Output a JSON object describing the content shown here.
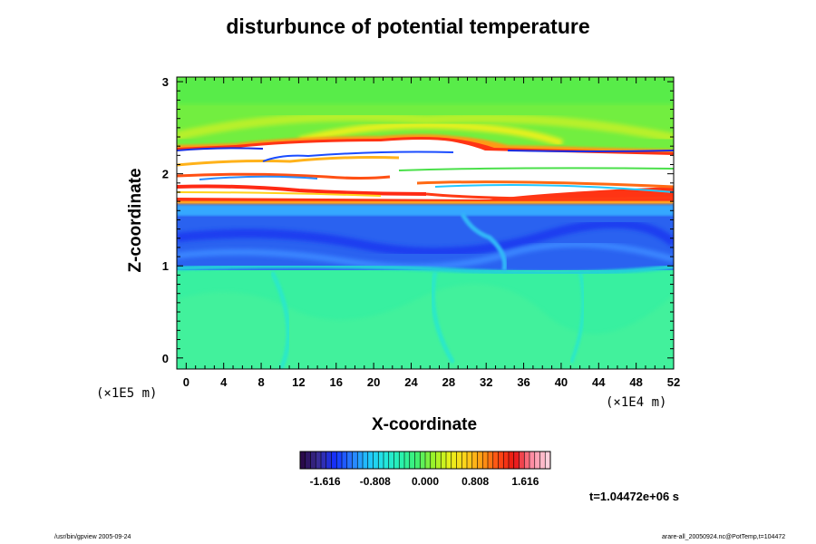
{
  "chart_data": {
    "type": "heatmap",
    "title": "disturbunce of potential temperature",
    "xlabel": "X-coordinate",
    "ylabel": "Z-coordinate",
    "x_unit": "(×1E4 m)",
    "y_unit": "(×1E5 m)",
    "xlim": [
      -1,
      52
    ],
    "ylim": [
      -0.12,
      3.05
    ],
    "x_ticks": [
      "0",
      "4",
      "8",
      "12",
      "16",
      "20",
      "24",
      "28",
      "32",
      "36",
      "40",
      "44",
      "48",
      "52"
    ],
    "y_ticks": [
      "0",
      "1",
      "2",
      "3"
    ],
    "colorbar": {
      "min": -2.02,
      "max": 2.02,
      "tick_labels": [
        "-1.616",
        "-0.808",
        "0.000",
        "0.808",
        "1.616"
      ],
      "colors": [
        "#2a0a4a",
        "#3a2f9a",
        "#1430ff",
        "#2a7cff",
        "#20c4ff",
        "#22e6e0",
        "#28f2b0",
        "#40f070",
        "#9af22a",
        "#e8f21a",
        "#ffd21a",
        "#ff9a14",
        "#ff4a14",
        "#e81414",
        "#ff8aa0",
        "#ffd0dc"
      ]
    },
    "field_bands": [
      {
        "z_range": [
          -0.12,
          0.95
        ],
        "value": 0.1,
        "description": "near-zero disturbance"
      },
      {
        "z_range": [
          0.95,
          1.65
        ],
        "value": -1.0,
        "description": "negative disturbance"
      },
      {
        "z_range": [
          1.65,
          2.35
        ],
        "value": 2.1,
        "description": "above colorbar max (white) with red/yellow edges"
      },
      {
        "z_range": [
          2.35,
          3.05
        ],
        "value": 0.55,
        "description": "positive disturbance"
      }
    ],
    "time_label": "t=1.04472e+06 s"
  },
  "footer": {
    "left": "/usr/bin/gpview 2005-09-24",
    "right": "arare-all_20050924.nc@PotTemp,t=104472"
  }
}
